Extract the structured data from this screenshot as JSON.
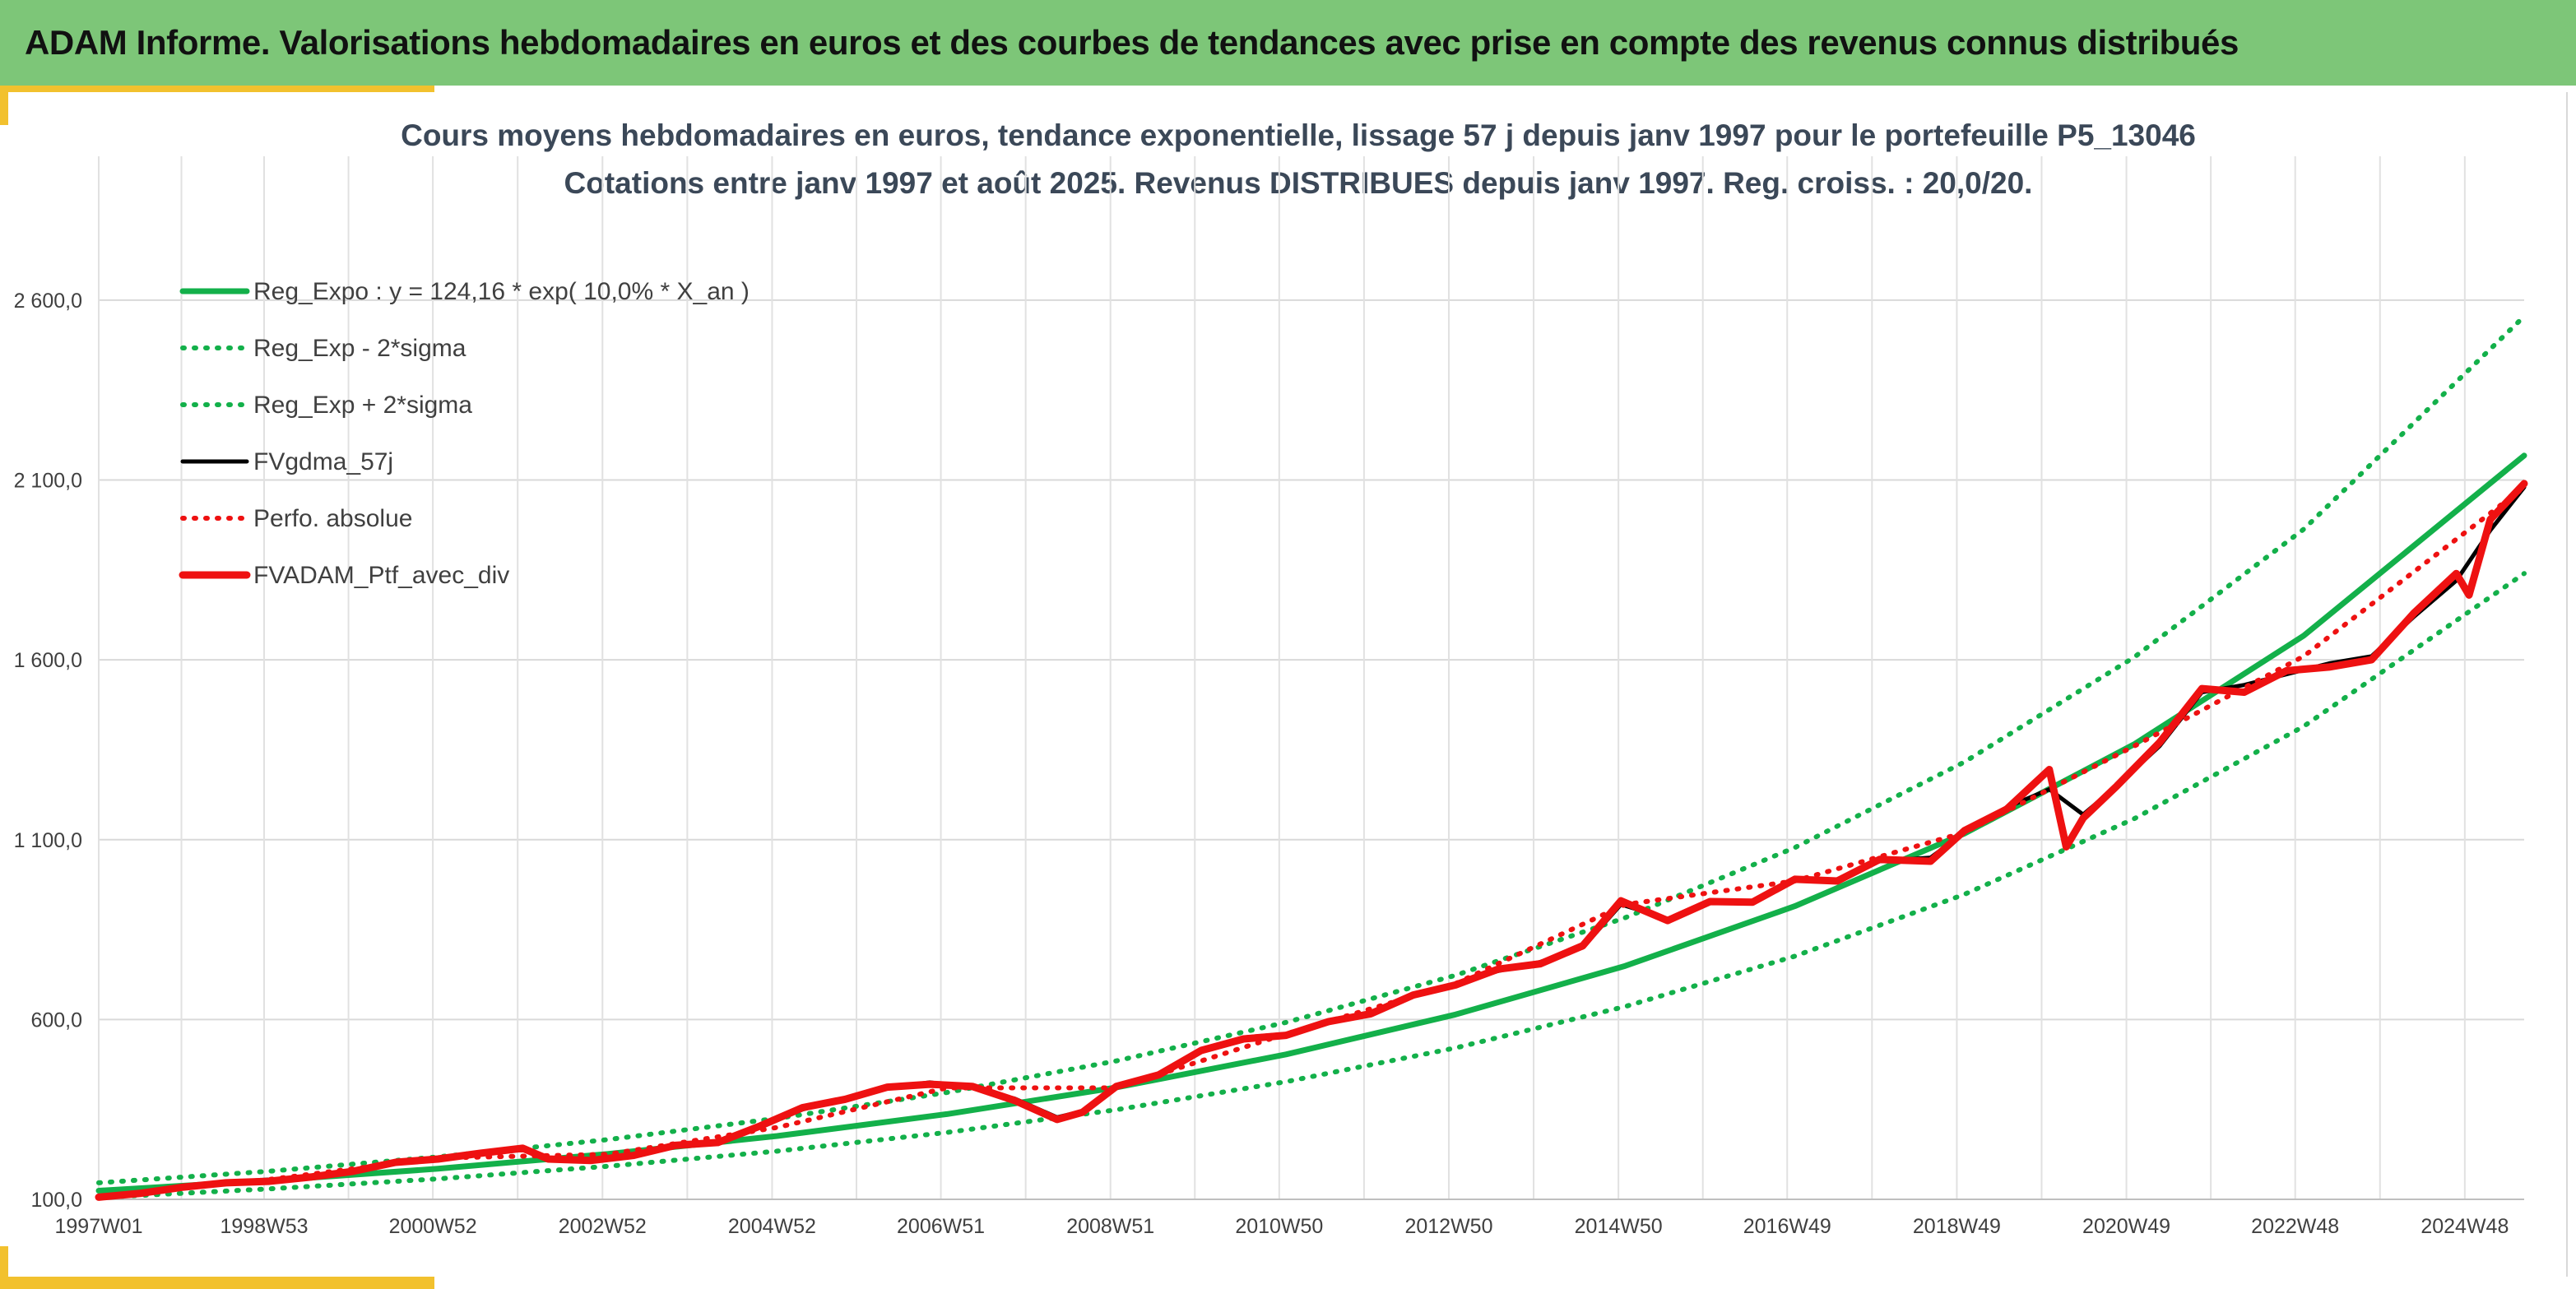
{
  "header": {
    "title": "ADAM Informe. Valorisations hebdomadaires en euros et des courbes de tendances avec prise en compte des revenus connus distribués"
  },
  "colors": {
    "header_bg": "#7dc678",
    "accent_gold": "#f2c12e",
    "trend": "#13b04a",
    "black": "#000000",
    "red": "#ee1111"
  },
  "chart_data": {
    "type": "line",
    "title": "Cours moyens hebdomadaires en euros, tendance exponentielle, lissage 57 j depuis janv 1997 pour le portefeuille P5_13046",
    "subtitle": "Cotations entre janv 1997 et août 2025. Revenus DISTRIBUES depuis janv 1997. Reg. croiss. : 20,0/20.",
    "xlabel": "",
    "ylabel": "",
    "x_range": [
      1997.0,
      2025.6
    ],
    "ylim": [
      100,
      3000
    ],
    "yticks": [
      100,
      600,
      1100,
      1600,
      2100,
      2600
    ],
    "ytick_labels": [
      "100,0",
      "600,0",
      "1 100,0",
      "1 600,0",
      "2 100,0",
      "2 600,0"
    ],
    "xticks": [
      1997.0,
      1998.95,
      2000.94,
      2002.94,
      2004.94,
      2006.93,
      2008.93,
      2010.92,
      2012.92,
      2014.92,
      2016.91,
      2018.91,
      2020.91,
      2022.9,
      2024.9
    ],
    "xtick_labels": [
      "1997W01",
      "1998W53",
      "2000W52",
      "2002W52",
      "2004W52",
      "2006W51",
      "2008W51",
      "2010W50",
      "2012W50",
      "2014W50",
      "2016W49",
      "2018W49",
      "2020W49",
      "2022W48",
      "2024W48"
    ],
    "grid": true,
    "legend_position": "top-left",
    "series": [
      {
        "name": "Reg_Expo : y = 124,16 * exp( 10,0% *  X_an )",
        "style": "solid",
        "color": "#13b04a",
        "x": [
          1997.0,
          1999.0,
          2001.0,
          2003.0,
          2005.0,
          2007.0,
          2009.0,
          2011.0,
          2013.0,
          2015.0,
          2017.0,
          2019.0,
          2021.0,
          2023.0,
          2025.6
        ],
        "y": [
          124,
          152,
          185,
          226,
          276,
          337,
          411,
          503,
          614,
          749,
          915,
          1117,
          1365,
          1667,
          2168
        ]
      },
      {
        "name": "Reg_Exp - 2*sigma",
        "style": "dotted",
        "color": "#13b04a",
        "x": [
          1997.0,
          1999.0,
          2001.0,
          2003.0,
          2005.0,
          2007.0,
          2009.0,
          2011.0,
          2013.0,
          2015.0,
          2017.0,
          2019.0,
          2021.0,
          2023.0,
          2025.6
        ],
        "y": [
          105,
          129,
          157,
          192,
          234,
          286,
          349,
          427,
          521,
          636,
          776,
          948,
          1158,
          1415,
          1840
        ]
      },
      {
        "name": "Reg_Exp + 2*sigma",
        "style": "dotted",
        "color": "#13b04a",
        "x": [
          1997.0,
          1999.0,
          2001.0,
          2003.0,
          2005.0,
          2007.0,
          2009.0,
          2011.0,
          2013.0,
          2015.0,
          2017.0,
          2019.0,
          2021.0,
          2023.0,
          2025.6
        ],
        "y": [
          146,
          178,
          218,
          266,
          325,
          397,
          485,
          592,
          723,
          883,
          1078,
          1316,
          1607,
          1963,
          2555
        ]
      },
      {
        "name": "FVgdma_57j",
        "style": "solid",
        "color": "#000000",
        "x": [
          1997.0,
          1997.5,
          1998.0,
          1998.5,
          1999.0,
          1999.5,
          2000.0,
          2000.5,
          2001.0,
          2001.5,
          2002.0,
          2002.3,
          2002.8,
          2003.3,
          2003.8,
          2004.3,
          2004.8,
          2005.3,
          2005.8,
          2006.3,
          2006.8,
          2007.3,
          2007.8,
          2008.3,
          2008.6,
          2009.0,
          2009.5,
          2010.0,
          2010.5,
          2011.0,
          2011.5,
          2012.0,
          2012.5,
          2013.0,
          2013.5,
          2014.0,
          2014.5,
          2014.95,
          2015.5,
          2016.0,
          2016.5,
          2017.0,
          2017.5,
          2018.0,
          2018.6,
          2019.0,
          2019.5,
          2020.0,
          2020.4,
          2020.8,
          2021.3,
          2021.8,
          2022.3,
          2022.8,
          2023.3,
          2023.8,
          2024.3,
          2024.8,
          2025.2,
          2025.6
        ],
        "y": [
          108,
          118,
          135,
          148,
          155,
          160,
          180,
          200,
          215,
          225,
          245,
          215,
          212,
          225,
          248,
          262,
          300,
          350,
          380,
          410,
          425,
          410,
          380,
          328,
          345,
          410,
          450,
          510,
          550,
          560,
          590,
          620,
          665,
          700,
          735,
          760,
          800,
          920,
          880,
          925,
          930,
          985,
          990,
          1040,
          1050,
          1120,
          1190,
          1240,
          1170,
          1250,
          1360,
          1510,
          1530,
          1560,
          1590,
          1610,
          1720,
          1820,
          1960,
          2080
        ]
      },
      {
        "name": "Perfo. absolue",
        "style": "dotted",
        "color": "#ee1111",
        "x": [
          1997.0,
          1999.0,
          2001.0,
          2003.0,
          2005.0,
          2007.0,
          2009.0,
          2011.0,
          2013.0,
          2015.0,
          2017.0,
          2019.0,
          2021.0,
          2023.0,
          2025.6
        ],
        "y": [
          108,
          155,
          215,
          225,
          300,
          410,
          410,
          560,
          700,
          920,
          985,
          1120,
          1360,
          1610,
          2080
        ]
      },
      {
        "name": "FVADAM_Ptf_avec_div",
        "style": "solid",
        "color": "#ee1111",
        "x": [
          1997.0,
          1997.5,
          1998.0,
          1998.5,
          1999.0,
          1999.5,
          2000.0,
          2000.5,
          2001.0,
          2001.5,
          2002.0,
          2002.3,
          2002.8,
          2003.3,
          2003.8,
          2004.3,
          2004.8,
          2005.3,
          2005.8,
          2006.3,
          2006.8,
          2007.3,
          2007.8,
          2008.3,
          2008.6,
          2009.0,
          2009.5,
          2010.0,
          2010.5,
          2011.0,
          2011.5,
          2012.0,
          2012.5,
          2013.0,
          2013.5,
          2014.0,
          2014.5,
          2014.95,
          2015.5,
          2016.0,
          2016.5,
          2017.0,
          2017.5,
          2018.0,
          2018.6,
          2019.0,
          2019.5,
          2020.0,
          2020.2,
          2020.4,
          2020.8,
          2021.3,
          2021.8,
          2022.3,
          2022.8,
          2023.3,
          2023.8,
          2024.3,
          2024.8,
          2024.95,
          2025.2,
          2025.6
        ],
        "y": [
          106,
          117,
          134,
          146,
          150,
          162,
          178,
          203,
          212,
          228,
          242,
          212,
          208,
          222,
          250,
          258,
          304,
          355,
          378,
          412,
          420,
          414,
          375,
          322,
          342,
          414,
          446,
          514,
          546,
          556,
          594,
          616,
          668,
          696,
          740,
          755,
          805,
          930,
          875,
          928,
          926,
          990,
          985,
          1045,
          1040,
          1125,
          1185,
          1295,
          1080,
          1160,
          1250,
          1370,
          1520,
          1510,
          1570,
          1580,
          1600,
          1730,
          1840,
          1780,
          1990,
          2090
        ]
      }
    ]
  }
}
